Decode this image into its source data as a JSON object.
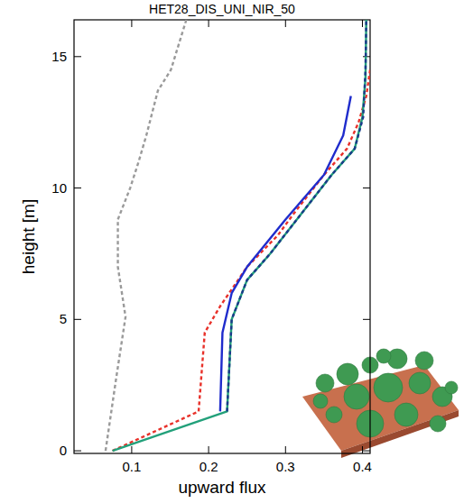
{
  "chart_data": {
    "type": "line",
    "title": "HET28_DIS_UNI_NIR_50",
    "x_label": "upward flux",
    "y_label": "height [m]",
    "xlim": [
      0.025,
      0.41
    ],
    "ylim": [
      -0.1,
      16.4
    ],
    "xticks": [
      0.1,
      0.2,
      0.3,
      0.4
    ],
    "yticks": [
      0,
      5,
      10,
      15
    ],
    "grid": false,
    "series": [
      {
        "color": "#9a9a9a",
        "line_style": "dotted",
        "x": [
          0.066,
          0.068,
          0.08,
          0.092,
          0.082,
          0.082,
          0.098,
          0.109,
          0.119,
          0.134,
          0.151,
          0.171
        ],
        "y": [
          0,
          0.4,
          2.8,
          5.1,
          7,
          8.8,
          10,
          11,
          12,
          13.7,
          14.5,
          16.4
        ]
      },
      {
        "color": "#e8312a",
        "line_style": "dotted",
        "x": [
          0.075,
          0.187,
          0.195,
          0.215,
          0.25,
          0.29,
          0.31,
          0.35,
          0.38,
          0.395,
          0.405,
          0.41
        ],
        "y": [
          0,
          1.5,
          4.5,
          5.5,
          7,
          8.2,
          9,
          10.5,
          11.5,
          12.5,
          13.5,
          14.5
        ]
      },
      {
        "color": "#1f2ccc",
        "line_style": "solid",
        "x": [
          0.215,
          0.218,
          0.23,
          0.25,
          0.3,
          0.35,
          0.375,
          0.385
        ],
        "y": [
          1.5,
          4.5,
          6,
          7,
          8.8,
          10.5,
          12,
          13.5
        ]
      },
      {
        "color": "#22a07a",
        "line_style": "solid",
        "x": [
          0.075,
          0.224,
          0.23,
          0.25,
          0.28,
          0.32,
          0.36,
          0.39,
          0.4,
          0.404,
          0.405
        ],
        "y": [
          0,
          1.5,
          5,
          6.5,
          7.5,
          9,
          10.5,
          11.5,
          12.7,
          14.2,
          16.4
        ]
      },
      {
        "color": "#1a3a8a",
        "line_style": "dotted",
        "x": [
          0.224,
          0.23,
          0.25,
          0.28,
          0.32,
          0.36,
          0.39,
          0.401,
          0.404,
          0.405
        ],
        "y": [
          1.5,
          5,
          6.5,
          7.5,
          9,
          10.5,
          11.5,
          12.7,
          14.5,
          16.4
        ]
      }
    ]
  }
}
